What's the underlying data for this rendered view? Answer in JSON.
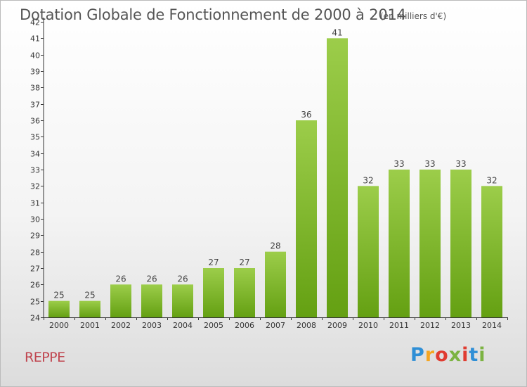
{
  "header": {
    "title": "Dotation Globale de Fonctionnement de 2000 à 2014",
    "subtitle": "(en milliers d'€)"
  },
  "footer": {
    "commune": "REPPE",
    "logo": [
      "P",
      "r",
      "o",
      "x",
      "i",
      "t",
      "i"
    ]
  },
  "colors": {
    "bar_top": "#9ccd4a",
    "bar_bottom": "#64a012",
    "commune": "#c0454f"
  },
  "chart_data": {
    "type": "bar",
    "title": "Dotation Globale de Fonctionnement de 2000 à 2014",
    "subtitle": "(en milliers d'€)",
    "categories": [
      "2000",
      "2001",
      "2002",
      "2003",
      "2004",
      "2005",
      "2006",
      "2007",
      "2008",
      "2009",
      "2010",
      "2011",
      "2012",
      "2013",
      "2014"
    ],
    "values": [
      25,
      25,
      26,
      26,
      26,
      27,
      27,
      28,
      36,
      41,
      32,
      33,
      33,
      33,
      32
    ],
    "ylim": [
      24,
      42
    ],
    "yticks": [
      24,
      25,
      26,
      27,
      28,
      29,
      30,
      31,
      32,
      33,
      34,
      35,
      36,
      37,
      38,
      39,
      40,
      41,
      42
    ],
    "grid": false,
    "xlabel": "",
    "ylabel": ""
  }
}
